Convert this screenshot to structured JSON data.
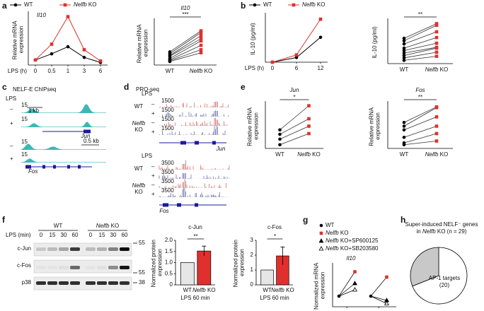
{
  "panel_labels": [
    "a",
    "b",
    "c",
    "d",
    "e",
    "f",
    "g",
    "h"
  ],
  "chart_data": [
    {
      "type": "line",
      "title": "Il10",
      "ylabel": "Relative mRNA expression",
      "xlabel": "LPS (h)",
      "categories": [
        "0",
        "0.5",
        "1",
        "3",
        "6"
      ],
      "ylim": [
        0,
        1
      ],
      "series": [
        {
          "name": "WT",
          "color": "#000000",
          "marker": "circle",
          "values": [
            0.1,
            0.22,
            0.36,
            0.15,
            0.05
          ]
        },
        {
          "name": "Nelfb KO",
          "color": "#e0302d",
          "marker": "square",
          "values": [
            0.1,
            0.41,
            0.95,
            0.3,
            0.08
          ]
        }
      ]
    },
    {
      "type": "slope",
      "title": "Il10",
      "ylabel": "Relative mRNA expression",
      "categories": [
        "WT",
        "Nelfb KO"
      ],
      "significance": "***",
      "colors": [
        "#000000",
        "#e0302d"
      ],
      "ylim": [
        0,
        1
      ],
      "pairs": [
        [
          0.3,
          0.78
        ],
        [
          0.26,
          0.74
        ],
        [
          0.22,
          0.67
        ],
        [
          0.2,
          0.6
        ],
        [
          0.15,
          0.55
        ],
        [
          0.12,
          0.45
        ],
        [
          0.1,
          0.35
        ],
        [
          0.08,
          0.28
        ]
      ]
    },
    {
      "type": "line",
      "ylabel": "IL-10 (pg/ml)",
      "xlabel": "LPS (h)",
      "categories": [
        "0",
        "6",
        "12"
      ],
      "ylim": [
        0,
        900
      ],
      "series": [
        {
          "name": "WT",
          "color": "#000000",
          "marker": "circle",
          "values": [
            0,
            90,
            480
          ]
        },
        {
          "name": "Nelfb KO",
          "color": "#e0302d",
          "marker": "square",
          "values": [
            0,
            140,
            830
          ]
        }
      ]
    },
    {
      "type": "slope",
      "ylabel": "IL-10 (pg/ml)",
      "categories": [
        "WT",
        "Nelfb KO"
      ],
      "significance": "**",
      "colors": [
        "#000000",
        "#e0302d"
      ],
      "ylim": [
        0,
        2600
      ],
      "pairs": [
        [
          1550,
          2450
        ],
        [
          1400,
          2350
        ],
        [
          1200,
          1950
        ],
        [
          950,
          1600
        ],
        [
          800,
          1250
        ],
        [
          650,
          1000
        ],
        [
          500,
          950
        ],
        [
          350,
          700
        ],
        [
          200,
          450
        ]
      ]
    },
    {
      "type": "slope",
      "title": "Jun",
      "ylabel": "Relative mRNA expression",
      "categories": [
        "WT",
        "Nelfb KO"
      ],
      "significance": "*",
      "colors": [
        "#000000",
        "#e0302d"
      ],
      "ylim": [
        0,
        1.2
      ],
      "pairs": [
        [
          0.5,
          1.15
        ],
        [
          0.38,
          0.8
        ],
        [
          0.25,
          0.6
        ],
        [
          0.1,
          0.4
        ]
      ]
    },
    {
      "type": "slope",
      "title": "Fos",
      "ylabel": "Relative mRNA expression",
      "categories": [
        "WT",
        "Nelfb KO"
      ],
      "significance": "**",
      "colors": [
        "#000000",
        "#e0302d"
      ],
      "ylim": [
        0,
        1.2
      ],
      "pairs": [
        [
          0.7,
          1.12
        ],
        [
          0.6,
          1.1
        ],
        [
          0.5,
          0.85
        ],
        [
          0.3,
          0.6
        ],
        [
          0.15,
          0.4
        ],
        [
          0.1,
          0.2
        ]
      ]
    },
    {
      "type": "bar",
      "title": "c-Jun",
      "ylabel": "Normalized protein expression",
      "xlabel": "LPS 60 min",
      "categories": [
        "WT",
        "Nelfb KO"
      ],
      "values": [
        1,
        1.52
      ],
      "errors": [
        0,
        0.22
      ],
      "colors": [
        "#e6e6e6",
        "#e0302d"
      ],
      "significance": "**",
      "ylim": [
        0,
        2
      ],
      "yticks": [
        0,
        0.5,
        {
          "value": 1,
          "label": "1.0"
        },
        1.5,
        {
          "value": 2,
          "label": "2.0"
        }
      ]
    },
    {
      "type": "bar",
      "title": "c-Fos",
      "ylabel": "Normalized protein expression",
      "xlabel": "LPS 60 min",
      "categories": [
        "WT",
        "Nelfb KO"
      ],
      "values": [
        1,
        1.95
      ],
      "errors": [
        0,
        0.6
      ],
      "colors": [
        "#e6e6e6",
        "#e0302d"
      ],
      "significance": "*",
      "ylim": [
        0,
        3
      ],
      "yticks": [
        0,
        1,
        2,
        3
      ]
    },
    {
      "type": "connected",
      "title": "Il10",
      "ylabel": "Normalized mRNA expression",
      "categories": [
        null,
        null
      ],
      "ylim": [
        0,
        4
      ],
      "series": [
        {
          "name": "WT",
          "color": "#000000",
          "marker": "circle",
          "values": [
            1,
            1
          ]
        },
        {
          "name": "Nelfb KO",
          "color": "#e0302d",
          "marker": "square",
          "values": [
            3.3,
            2.8
          ]
        },
        {
          "name": "Nelfb KO+SP600125",
          "color": "#000000",
          "marker": "triangle",
          "values": [
            2.2,
            0.6
          ]
        },
        {
          "name": "Nelfb KO+SB203580",
          "color": "#000000",
          "marker": "triangle-open",
          "values": [
            1.6,
            0.3
          ]
        }
      ]
    },
    {
      "type": "pie",
      "title": [
        "Super-induced NELF⁻ genes",
        "in Nelfb KO (n = 29)"
      ],
      "values": [
        20,
        9
      ],
      "labels": [
        "AP-1 targets",
        null
      ],
      "value_labels": [
        "(20)",
        null
      ],
      "colors": [
        "#ffffff",
        "#c8c8c8"
      ]
    }
  ],
  "chipseq": {
    "title": "NELF-E ChIPseq",
    "lps": "LPS",
    "minus": "–",
    "plus": "+",
    "scale": "15",
    "jun_bar": "1 kb",
    "jun": "Jun",
    "fos_bar": "0.5 kb",
    "fos": "Fos"
  },
  "proseq": {
    "title": "PRO-seq",
    "lps": "LPS",
    "wt": "WT",
    "nelfb": "Nelfb",
    "ko": "KO",
    "minus": "–",
    "plus": "+",
    "scale_jun": "1500",
    "scale_fos": "3500",
    "jun": "Jun",
    "fos": "Fos"
  },
  "blot": {
    "lps": "LPS (min)",
    "groups": [
      "WT",
      "Nelfb KO"
    ],
    "lanes": [
      "0",
      "15",
      "30",
      "60"
    ],
    "rows": [
      "c-Jun",
      "c-Fos",
      "p38"
    ],
    "markers": [
      "55",
      "55",
      "38"
    ]
  }
}
